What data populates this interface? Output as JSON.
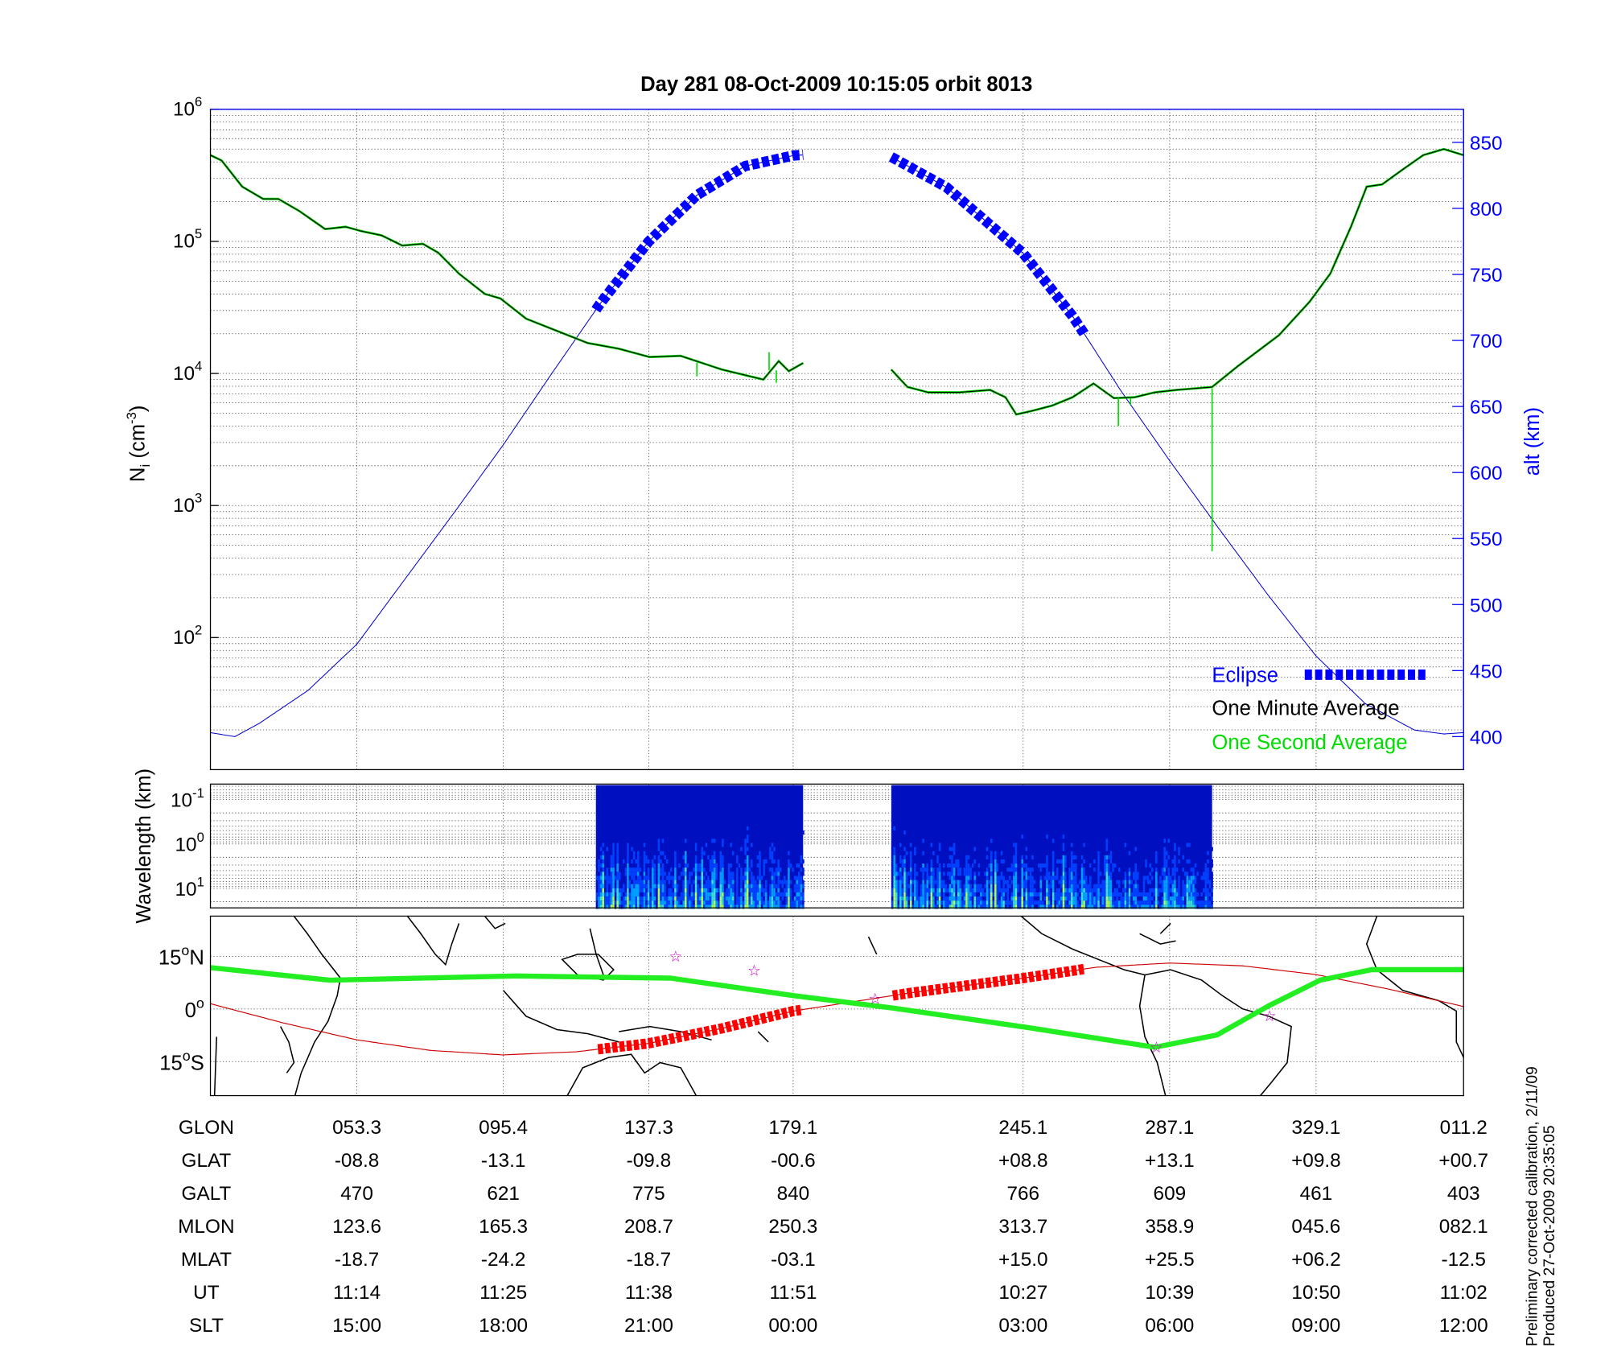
{
  "title": "Day 281  08-Oct-2009 10:15:05   orbit 8013",
  "colors": {
    "eclipse": "#0000ff",
    "minute_avg": "#000000",
    "second_avg": "#00dd00",
    "altitude": "#0000cc",
    "track": "#cc0000",
    "track_eclipse": "#ff0000",
    "dip_equator": "#22ee22",
    "stars": "#cc00cc"
  },
  "chart_data": [
    {
      "type": "line",
      "panel": "density",
      "title": "Day 281  08-Oct-2009 10:15:05   orbit 8013",
      "x_axis": {
        "unit_note": "",
        "tick_values_slt_hours": [
          15,
          18,
          21,
          24,
          27,
          30,
          33,
          36
        ],
        "xlim": [
          12,
          36
        ]
      },
      "ylabel": {
        "main": "N",
        "sub": "i",
        "unit_open": " (cm",
        "unit_sup": "-3",
        "unit_close": ")"
      },
      "yscale": "log",
      "ylim": [
        10,
        1000000
      ],
      "yticks": [
        {
          "base": "10",
          "exp": "2",
          "value": 100
        },
        {
          "base": "10",
          "exp": "3",
          "value": 1000
        },
        {
          "base": "10",
          "exp": "4",
          "value": 10000
        },
        {
          "base": "10",
          "exp": "5",
          "value": 100000
        },
        {
          "base": "10",
          "exp": "6",
          "value": 1000000
        }
      ],
      "y2label": "alt (km)",
      "y2lim": [
        375,
        875
      ],
      "y2ticks": [
        "400",
        "450",
        "500",
        "550",
        "600",
        "650",
        "700",
        "750",
        "800",
        "850"
      ],
      "grid": true,
      "legend": {
        "placement": "bottom-right",
        "entries": [
          {
            "label": "Eclipse",
            "color": "#0000ff"
          },
          {
            "label": "One Minute Average",
            "color": "#000000"
          },
          {
            "label": "One Second Average",
            "color": "#00dd00"
          }
        ]
      },
      "series": [
        {
          "name": "One Minute Average",
          "axis": "left",
          "segments": [
            [
              [
                12.0,
                450000
              ],
              [
                12.23,
                410000
              ],
              [
                12.65,
                260000
              ],
              [
                13.08,
                210000
              ],
              [
                13.39,
                210000
              ],
              [
                13.82,
                170000
              ],
              [
                14.35,
                124000
              ],
              [
                14.77,
                129000
              ],
              [
                15.08,
                120000
              ],
              [
                15.51,
                111000
              ],
              [
                15.93,
                93000
              ],
              [
                16.35,
                96000
              ],
              [
                16.67,
                82000
              ],
              [
                17.09,
                57000
              ],
              [
                17.62,
                40000
              ],
              [
                17.94,
                37000
              ],
              [
                18.47,
                26000
              ],
              [
                19.11,
                21000
              ],
              [
                19.74,
                17000
              ],
              [
                20.38,
                15400
              ],
              [
                21.02,
                13300
              ],
              [
                21.66,
                13600
              ],
              [
                22.52,
                10700
              ],
              [
                23.38,
                9000
              ],
              [
                23.7,
                12400
              ],
              [
                23.91,
                10400
              ],
              [
                24.13,
                12000
              ]
            ],
            [
              [
                25.28,
                10700
              ],
              [
                25.49,
                7900
              ],
              [
                25.76,
                7200
              ],
              [
                26.17,
                7200
              ],
              [
                26.57,
                7500
              ],
              [
                26.77,
                6600
              ],
              [
                26.91,
                4900
              ],
              [
                27.17,
                5200
              ],
              [
                27.59,
                5700
              ],
              [
                28.01,
                6600
              ],
              [
                28.44,
                8400
              ],
              [
                28.86,
                6500
              ],
              [
                29.28,
                6600
              ],
              [
                29.7,
                7200
              ],
              [
                30.13,
                7500
              ],
              [
                30.87,
                7900
              ],
              [
                31.39,
                11300
              ],
              [
                32.24,
                19500
              ],
              [
                32.87,
                35000
              ],
              [
                33.29,
                57000
              ],
              [
                33.71,
                129000
              ],
              [
                34.03,
                260000
              ],
              [
                34.34,
                270000
              ],
              [
                34.76,
                350000
              ],
              [
                35.18,
                450000
              ],
              [
                35.6,
                500000
              ],
              [
                36.0,
                450000
              ]
            ]
          ]
        },
        {
          "name": "One Second Average",
          "axis": "left",
          "spikes": [
            [
              22.0,
              9500
            ],
            [
              23.5,
              14500
            ],
            [
              23.65,
              8500
            ],
            [
              28.95,
              4000
            ],
            [
              29.2,
              5800
            ],
            [
              30.87,
              450
            ]
          ]
        },
        {
          "name": "Altitude",
          "axis": "right",
          "points": [
            [
              12.0,
              403
            ],
            [
              12.5,
              400
            ],
            [
              13,
              410
            ],
            [
              14,
              435
            ],
            [
              15,
              470
            ],
            [
              16,
              520
            ],
            [
              17,
              570
            ],
            [
              18,
              621
            ],
            [
              19,
              675
            ],
            [
              20,
              728
            ],
            [
              21,
              775
            ],
            [
              22,
              810
            ],
            [
              23,
              832
            ],
            [
              24,
              840
            ],
            [
              24.5,
              842
            ],
            [
              25.28,
              839
            ],
            [
              26,
              816
            ],
            [
              27,
              766
            ],
            [
              28,
              719
            ],
            [
              28.27,
              704
            ],
            [
              29,
              662
            ],
            [
              30,
              609
            ],
            [
              31,
              558
            ],
            [
              32,
              508
            ],
            [
              33,
              461
            ],
            [
              34,
              425
            ],
            [
              35,
              405
            ],
            [
              35.6,
              402
            ],
            [
              36,
              403
            ]
          ]
        },
        {
          "name": "Eclipse",
          "axis": "right",
          "intervals_slt": [
            [
              19.91,
              24.13
            ],
            [
              25.28,
              28.27
            ]
          ]
        }
      ]
    },
    {
      "type": "heatmap",
      "panel": "spectrogram",
      "ylabel": "Wavelength (km)",
      "yscale": "log",
      "ylim_reversed": [
        0.045,
        28
      ],
      "yticks": [
        {
          "base": "10",
          "exp": "-1",
          "value": 0.1
        },
        {
          "base": "10",
          "exp": "0",
          "value": 1
        },
        {
          "base": "10",
          "exp": "1",
          "value": 10
        }
      ],
      "data_intervals_slt": [
        [
          19.91,
          24.13
        ],
        [
          25.28,
          30.87
        ]
      ],
      "colormap": [
        "#000080",
        "#0010c0",
        "#0040ff",
        "#00a0ff",
        "#40e0d0",
        "#b0ff50"
      ]
    },
    {
      "type": "line",
      "panel": "map",
      "ylim": [
        -25,
        26
      ],
      "yticks": [
        {
          "value": 15,
          "num": "15",
          "sup": "o",
          "hemi": "N"
        },
        {
          "value": 0,
          "num": "0",
          "sup": "o",
          "hemi": ""
        },
        {
          "value": -15,
          "num": "15",
          "sup": "o",
          "hemi": "S"
        }
      ],
      "series": [
        {
          "name": "",
          "role": "satellite track",
          "points": [
            [
              12,
              1.5
            ],
            [
              13.5,
              -4
            ],
            [
              15,
              -8.8
            ],
            [
              16.5,
              -11.8
            ],
            [
              18,
              -13.1
            ],
            [
              19.5,
              -12.2
            ],
            [
              21,
              -9.8
            ],
            [
              22.5,
              -5.6
            ],
            [
              24,
              -0.6
            ],
            [
              25.5,
              4.5
            ],
            [
              27,
              8.8
            ],
            [
              28.5,
              11.9
            ],
            [
              30,
              13.1
            ],
            [
              31.5,
              12.3
            ],
            [
              33,
              9.8
            ],
            [
              34.5,
              5.6
            ],
            [
              36,
              0.7
            ]
          ]
        },
        {
          "name": "",
          "role": "dip equator",
          "points": [
            [
              12,
              11.8
            ],
            [
              14.45,
              8.2
            ],
            [
              18.26,
              9.4
            ],
            [
              21.45,
              8.8
            ],
            [
              24.01,
              3.8
            ],
            [
              25.29,
              0.3
            ],
            [
              26.97,
              -5
            ],
            [
              29.7,
              -10.9
            ],
            [
              30.97,
              -7.4
            ],
            [
              32.03,
              0.9
            ],
            [
              33.08,
              8.2
            ],
            [
              34.13,
              11.2
            ],
            [
              36,
              11.2
            ]
          ]
        }
      ],
      "stars": [
        [
          21.56,
          15
        ],
        [
          23.19,
          10.9
        ],
        [
          25.07,
          2.9
        ],
        [
          29.73,
          -10.9
        ],
        [
          32.05,
          -2
        ]
      ]
    }
  ],
  "table": {
    "rows": [
      {
        "label": "GLON",
        "values": [
          "053.3",
          "095.4",
          "137.3",
          "179.1",
          "245.1",
          "287.1",
          "329.1",
          "011.2"
        ]
      },
      {
        "label": "GLAT",
        "values": [
          "-08.8",
          "-13.1",
          "-09.8",
          "-00.6",
          "+08.8",
          "+13.1",
          "+09.8",
          "+00.7"
        ]
      },
      {
        "label": "GALT",
        "values": [
          "470",
          "621",
          "775",
          "840",
          "766",
          "609",
          "461",
          "403"
        ]
      },
      {
        "label": "MLON",
        "values": [
          "123.6",
          "165.3",
          "208.7",
          "250.3",
          "313.7",
          "358.9",
          "045.6",
          "082.1"
        ]
      },
      {
        "label": "MLAT",
        "values": [
          "-18.7",
          "-24.2",
          "-18.7",
          "-03.1",
          "+15.0",
          "+25.5",
          "+06.2",
          "-12.5"
        ]
      },
      {
        "label": "UT",
        "values": [
          "11:14",
          "11:25",
          "11:38",
          "11:51",
          "10:27",
          "10:39",
          "10:50",
          "11:02"
        ]
      },
      {
        "label": "SLT",
        "values": [
          "15:00",
          "18:00",
          "21:00",
          "00:00",
          "03:00",
          "06:00",
          "09:00",
          "12:00"
        ]
      }
    ]
  },
  "footer": {
    "line1": "Preliminary corrected calibration, 2/11/09",
    "line2": "Produced 27-Oct-2009 20:35:05"
  }
}
